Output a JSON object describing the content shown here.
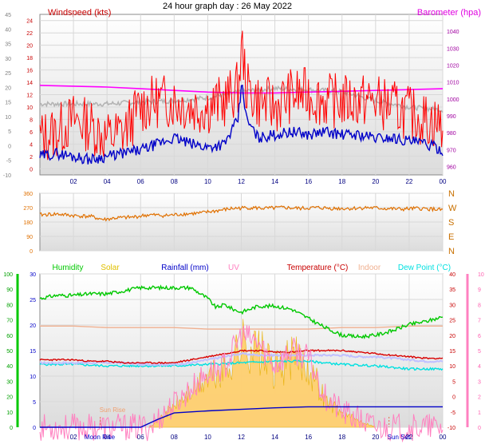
{
  "header": {
    "title": "24 hour graph day : 26 May 2022"
  },
  "chart_data": [
    {
      "type": "line",
      "panel": "wind",
      "x_tick_labels": [
        "02",
        "04",
        "06",
        "08",
        "10",
        "12",
        "14",
        "16",
        "18",
        "20",
        "22",
        "00"
      ],
      "left_axis": {
        "title": "Windspeed (kts)",
        "ylim": [
          -1,
          25
        ],
        "ticks": [
          0,
          2,
          4,
          6,
          8,
          10,
          12,
          14,
          16,
          18,
          20,
          22,
          24
        ],
        "outer_ylim": [
          -10,
          45
        ],
        "outer_ticks": [
          -10,
          -5,
          0,
          5,
          10,
          15,
          20,
          25,
          30,
          35,
          40,
          45
        ]
      },
      "right_axis": {
        "title": "Barometer (hpa)",
        "ylim": [
          955,
          1050
        ],
        "ticks": [
          960,
          970,
          980,
          990,
          1000,
          1010,
          1020,
          1030,
          1040
        ]
      },
      "grid": true,
      "series": [
        {
          "color": "#ff0000",
          "x": [
            0,
            1,
            2,
            3,
            4,
            5,
            6,
            7,
            8,
            9,
            10,
            11,
            11.8,
            12.05,
            12.3,
            13,
            14,
            15,
            16,
            17,
            18,
            19,
            20,
            21,
            22,
            23,
            24
          ],
          "values": [
            5,
            6,
            8,
            7,
            5,
            6,
            10,
            11,
            11,
            10,
            10,
            11,
            13,
            20,
            13,
            11,
            10,
            12,
            12,
            11,
            11,
            11,
            11,
            10,
            9,
            8,
            7
          ]
        },
        {
          "color": "#0000c8",
          "x": [
            0,
            1,
            2,
            3,
            4,
            5,
            6,
            7,
            8,
            9,
            10,
            11,
            11.8,
            12.05,
            12.3,
            13,
            14,
            15,
            16,
            17,
            18,
            19,
            20,
            21,
            22,
            23,
            24
          ],
          "values": [
            2,
            2.5,
            2,
            1.5,
            2,
            2.5,
            3,
            4,
            5,
            4,
            3.5,
            4,
            8,
            14,
            8,
            5,
            5.5,
            6,
            5.5,
            6,
            5.5,
            5.5,
            5,
            5,
            4.5,
            4,
            3
          ]
        },
        {
          "color": "#b4b4b4",
          "x": [
            0,
            2,
            4,
            6,
            8,
            10,
            12,
            14,
            16,
            18,
            20,
            22,
            24
          ],
          "values": [
            10.5,
            10.5,
            10.5,
            10.8,
            11,
            11.5,
            12.5,
            13,
            12.8,
            12.5,
            11,
            10,
            9.5
          ]
        },
        {
          "color": "#ff00ff",
          "axis": "right",
          "x": [
            0,
            2,
            4,
            6,
            8,
            10,
            12,
            14,
            16,
            18,
            20,
            22,
            24
          ],
          "values": [
            1008,
            1007.5,
            1007,
            1006,
            1005,
            1004,
            1003.5,
            1003.5,
            1004,
            1004.5,
            1005,
            1005.5,
            1006
          ]
        }
      ]
    },
    {
      "type": "line",
      "panel": "wind-direction",
      "x_tick_labels": [
        "02",
        "04",
        "06",
        "08",
        "10",
        "12",
        "14",
        "16",
        "18",
        "20",
        "22",
        "00"
      ],
      "left_axis": {
        "ylim": [
          0,
          360
        ],
        "ticks": [
          0,
          90,
          180,
          270,
          360
        ]
      },
      "right_labels": [
        "N",
        "W",
        "S",
        "E",
        "N"
      ],
      "right_label_values": [
        360,
        270,
        180,
        90,
        0
      ],
      "grid": true,
      "series": [
        {
          "color": "#e07000",
          "x": [
            0,
            1,
            2,
            3,
            3.8,
            4.5,
            5.5,
            6.5,
            7.5,
            8.5,
            9.5,
            10.5,
            11.5,
            12.5,
            13.5,
            14.5,
            15.5,
            16.5,
            17.5,
            18.5,
            19.5,
            20.5,
            21.5,
            22.5,
            23.5,
            24
          ],
          "values": [
            225,
            230,
            220,
            215,
            195,
            205,
            210,
            225,
            220,
            230,
            235,
            250,
            265,
            270,
            265,
            270,
            265,
            270,
            265,
            265,
            270,
            265,
            260,
            265,
            260,
            255
          ]
        }
      ]
    },
    {
      "type": "line",
      "panel": "environment",
      "x_tick_labels": [
        "02",
        "04",
        "06",
        "08",
        "10",
        "12",
        "14",
        "16",
        "18",
        "20",
        "22",
        "00"
      ],
      "legend": [
        "Humidity",
        "Solar",
        "Rainfall (mm)",
        "UV",
        "Temperature (°C)",
        "Indoor",
        "Dew Point (°C)"
      ],
      "legend_colors": [
        "#00c800",
        "#e0c000",
        "#0000c8",
        "#ff80c0",
        "#c80000",
        "#f0b090",
        "#00e0e0"
      ],
      "annotations": [
        "Moon Rise",
        "Sun Rise",
        "Sun Set"
      ],
      "axes": {
        "humidity": {
          "ylim": [
            0,
            100
          ],
          "ticks": [
            0,
            10,
            20,
            30,
            40,
            50,
            60,
            70,
            80,
            90,
            100
          ]
        },
        "rainfall": {
          "ylim": [
            0,
            30
          ],
          "ticks": [
            0,
            5,
            10,
            15,
            20,
            25,
            30
          ]
        },
        "temperature": {
          "ylim": [
            -10,
            40
          ],
          "ticks": [
            -10,
            -5,
            0,
            5,
            10,
            15,
            20,
            25,
            30,
            35,
            40
          ]
        },
        "uv": {
          "ylim": [
            0,
            10
          ],
          "ticks": [
            0,
            1,
            2,
            3,
            4,
            5,
            6,
            7,
            8,
            9,
            10
          ]
        }
      },
      "grid": true,
      "series": [
        {
          "color": "#00c800",
          "axis": "humidity",
          "x": [
            0,
            1,
            2,
            3,
            4,
            5,
            6,
            7,
            8,
            9,
            10,
            10.5,
            11,
            11.5,
            12,
            13,
            14,
            15,
            16,
            17,
            18,
            19,
            20,
            21,
            22,
            23,
            24
          ],
          "values": [
            84,
            86,
            86,
            87,
            87,
            89,
            91,
            91,
            91,
            91,
            84,
            78,
            80,
            77,
            75,
            79,
            79,
            77,
            71,
            65,
            60,
            59,
            60,
            63,
            67,
            69,
            72
          ]
        },
        {
          "color": "#f0b090",
          "axis": "temperature",
          "x": [
            0,
            2,
            4,
            6,
            8,
            10,
            12,
            14,
            16,
            18,
            20,
            22,
            24
          ],
          "values": [
            23,
            23,
            22.5,
            22.5,
            22.5,
            22,
            22,
            22,
            22,
            22.5,
            22.5,
            23,
            23
          ]
        },
        {
          "color": "#d80000",
          "axis": "temperature",
          "x": [
            0,
            1,
            2,
            3,
            4,
            5,
            6,
            7,
            8,
            9,
            10,
            11,
            12,
            13,
            14,
            15,
            16,
            17,
            18,
            19,
            20,
            21,
            22,
            23,
            24
          ],
          "values": [
            12,
            12,
            12,
            11.5,
            11.5,
            11,
            11,
            11,
            11,
            12,
            13,
            14,
            15,
            15,
            14.5,
            14.5,
            15,
            15,
            15,
            14.5,
            14,
            13.5,
            13,
            12.5,
            12.5
          ]
        },
        {
          "color": "#c0c0ff",
          "axis": "temperature",
          "x": [
            0,
            1,
            2,
            3,
            4,
            5,
            6,
            7,
            8,
            9,
            10,
            11,
            12,
            13,
            14,
            15,
            16,
            17,
            18,
            19,
            20,
            21,
            22,
            23,
            24
          ],
          "values": [
            11,
            11,
            11,
            11,
            11,
            11,
            10.5,
            10.5,
            10.5,
            11,
            12,
            13,
            14,
            13.5,
            13.5,
            13.5,
            13.5,
            13.5,
            13.5,
            13,
            13,
            12.5,
            12,
            11.5,
            11.5
          ]
        },
        {
          "color": "#00e0e0",
          "axis": "temperature",
          "x": [
            0,
            2,
            4,
            6,
            8,
            10,
            12,
            14,
            16,
            18,
            20,
            22,
            24
          ],
          "values": [
            10.5,
            10.5,
            10,
            10,
            10,
            10.5,
            11,
            11.5,
            11.5,
            10.5,
            10,
            9,
            9
          ]
        },
        {
          "color": "#0000c8",
          "axis": "rainfall",
          "x": [
            0,
            6,
            7,
            8,
            10,
            12,
            14,
            16,
            18,
            20,
            22,
            24
          ],
          "values": [
            0,
            0,
            1.5,
            2.8,
            3.2,
            3.5,
            3.8,
            4,
            4,
            4,
            4,
            4
          ]
        },
        {
          "color": "#ff80c0",
          "axis": "uv",
          "x": [
            6.5,
            7,
            8,
            9,
            10,
            11,
            11.5,
            12,
            13,
            14,
            15,
            16,
            17,
            18,
            19,
            20
          ],
          "values": [
            0,
            0.5,
            1.5,
            2.5,
            3.5,
            4,
            5,
            6,
            5.5,
            4,
            5,
            4.5,
            2,
            1,
            0.5,
            0
          ]
        }
      ]
    }
  ]
}
